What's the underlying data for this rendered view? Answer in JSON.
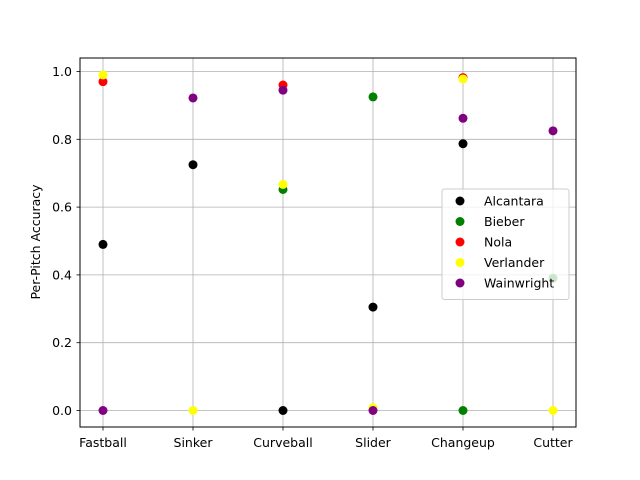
{
  "chart_data": {
    "type": "scatter",
    "title": "",
    "xlabel": "",
    "ylabel": "Per-Pitch Accuracy",
    "categories": [
      "Fastball",
      "Sinker",
      "Curveball",
      "Slider",
      "Changeup",
      "Cutter"
    ],
    "ylim": [
      -0.05,
      1.04
    ],
    "yticks": [
      0.0,
      0.2,
      0.4,
      0.6,
      0.8,
      1.0
    ],
    "ytick_labels": [
      "0.0",
      "0.2",
      "0.4",
      "0.6",
      "0.8",
      "1.0"
    ],
    "grid": true,
    "legend_position": "center-right",
    "series": [
      {
        "name": "Alcantara",
        "color": "#000000",
        "values": [
          0.49,
          0.725,
          0.0,
          0.305,
          0.787,
          null
        ]
      },
      {
        "name": "Bieber",
        "color": "#008000",
        "values": [
          null,
          null,
          0.652,
          0.925,
          0.0,
          0.39
        ]
      },
      {
        "name": "Nola",
        "color": "#ff0000",
        "values": [
          0.97,
          null,
          0.96,
          null,
          0.982,
          null
        ]
      },
      {
        "name": "Verlander",
        "color": "#ffff00",
        "values": [
          0.99,
          0.0,
          0.667,
          0.008,
          0.978,
          0.0
        ]
      },
      {
        "name": "Wainwright",
        "color": "#800080",
        "values": [
          0.0,
          0.922,
          0.945,
          0.0,
          0.862,
          0.825
        ]
      }
    ]
  }
}
